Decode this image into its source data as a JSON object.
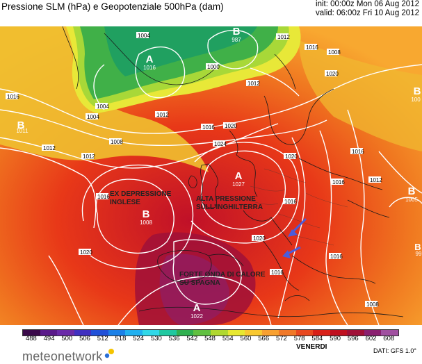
{
  "header": {
    "title": "Pressione SLM (hPa) e Geopotenziale 500hPa (dam)",
    "init": "init: 00:00z Mon 06 Aug 2012",
    "valid": "valid: 06:00z Fri 10 Aug 2012"
  },
  "annotations": {
    "ex_depression_line1": "EX DEPRESSIONE",
    "ex_depression_line2": "INGLESE",
    "high_pressure_line1": "ALTA PRESSIONE",
    "high_pressure_line2": "SULL'INGHILTERRA",
    "heat_wave_line1": "FORTE ONDA DI CALORE",
    "heat_wave_line2": "SU SPAGNA"
  },
  "centers": [
    {
      "type": "A",
      "value": "1016"
    },
    {
      "type": "B",
      "value": "987"
    },
    {
      "type": "B",
      "value": "1011"
    },
    {
      "type": "A",
      "value": "1027"
    },
    {
      "type": "B",
      "value": "1008"
    },
    {
      "type": "A",
      "value": "1022"
    },
    {
      "type": "B",
      "value": "1005"
    },
    {
      "type": "B",
      "value": "100"
    },
    {
      "type": "B",
      "value": "99"
    }
  ],
  "isobar_labels": [
    "1004",
    "1004",
    "1004",
    "1000",
    "1012",
    "1016",
    "1008",
    "1012",
    "1016",
    "1020",
    "1024",
    "1012",
    "1020",
    "1016",
    "1008",
    "1012",
    "1012",
    "1016",
    "1020",
    "1016",
    "1020",
    "1008",
    "1016",
    "1020",
    "1016",
    "1016",
    "1016",
    "1012"
  ],
  "legend": {
    "ticks": [
      "488",
      "494",
      "500",
      "506",
      "512",
      "518",
      "524",
      "530",
      "536",
      "542",
      "548",
      "554",
      "560",
      "566",
      "572",
      "578",
      "584",
      "590",
      "596",
      "602",
      "608"
    ],
    "colors": [
      "#3a0a4a",
      "#5a1a8a",
      "#6a2aa8",
      "#4030c0",
      "#2050d8",
      "#1a80e8",
      "#20b0f0",
      "#30d8e8",
      "#20c8a0",
      "#30b050",
      "#60c040",
      "#b0d830",
      "#e8e830",
      "#f8c830",
      "#f8a030",
      "#f07828",
      "#e84820",
      "#d82018",
      "#c01020",
      "#a01038",
      "#8a2070",
      "#a050a0"
    ],
    "day": "VENERDI",
    "source": "DATI: GFS 1.0°"
  },
  "brand": {
    "name": "meteonetwork",
    "dot_colors": [
      "#f5c400",
      "#2a6fd6"
    ]
  }
}
